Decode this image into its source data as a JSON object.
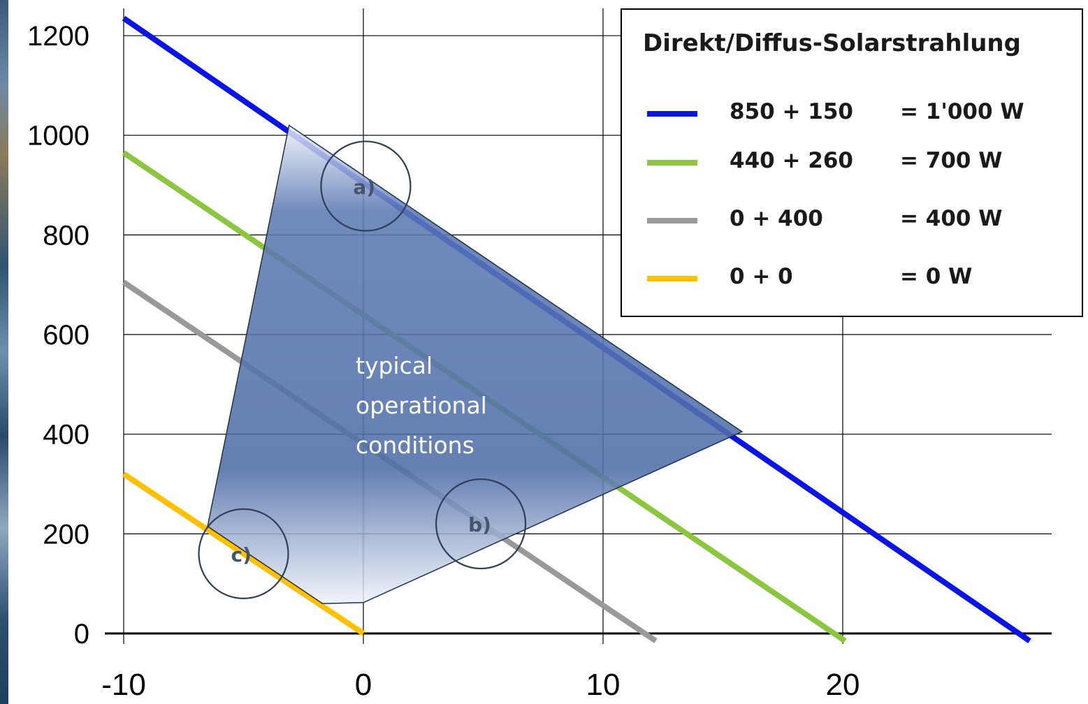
{
  "chart_data": {
    "type": "line",
    "title": "",
    "xlabel": "",
    "ylabel": "",
    "xlim": [
      -10,
      28
    ],
    "ylim": [
      0,
      1250
    ],
    "grid": true,
    "x_ticks": [
      -10,
      0,
      10,
      20
    ],
    "y_ticks": [
      0,
      200,
      400,
      600,
      800,
      1000,
      1200
    ],
    "legend": {
      "title": "Direkt/Diffus-Solarstrahlung",
      "placement": "top-right"
    },
    "series": [
      {
        "name": "850 + 150",
        "total": "= 1'000 W",
        "color": "#0a14e6",
        "x": [
          -10,
          27.8
        ],
        "y": [
          1235,
          -15
        ]
      },
      {
        "name": "440 + 260",
        "total": "= 700 W",
        "color": "#8cc63e",
        "x": [
          -10,
          20.1
        ],
        "y": [
          965,
          -15
        ]
      },
      {
        "name": "0 + 400",
        "total": "= 400 W",
        "color": "#999999",
        "x": [
          -10,
          12.2
        ],
        "y": [
          705,
          -15
        ]
      },
      {
        "name": "0 + 0",
        "total": "= 0 W",
        "color": "#ffc000",
        "x": [
          -10,
          0
        ],
        "y": [
          320,
          0
        ]
      }
    ],
    "annotations": {
      "region": {
        "lines": [
          "typical",
          "operational",
          "conditions"
        ],
        "color": "#44669f",
        "polygon": [
          [
            -3.1,
            1020
          ],
          [
            15.8,
            405
          ],
          [
            0,
            62
          ],
          [
            -1.7,
            60
          ],
          [
            -6.5,
            215
          ]
        ]
      },
      "markers": [
        {
          "label": "a)",
          "x": 0.1,
          "y": 898
        },
        {
          "label": "b)",
          "x": 4.9,
          "y": 220
        },
        {
          "label": "c)",
          "x": -5.0,
          "y": 160
        }
      ]
    }
  }
}
